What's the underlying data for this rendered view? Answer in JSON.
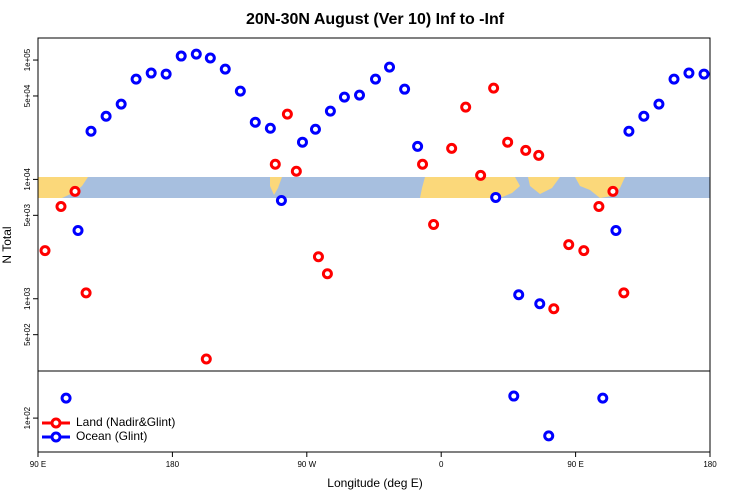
{
  "chart_data": {
    "type": "scatter",
    "title": "20N-30N August (Ver 10)   Inf to -Inf",
    "xlabel": "Longitude (deg E)",
    "ylabel": "N Total",
    "log_y": true,
    "legend": "bottom-left",
    "separator": 248,
    "xlim": [
      90,
      540
    ],
    "ylim": [
      52,
      153000
    ],
    "xticks": [
      {
        "value": 90,
        "label": "90 E"
      },
      180,
      {
        "value": 270,
        "label": "90 W"
      },
      {
        "value": 360,
        "label": "0"
      },
      {
        "value": 450,
        "label": "90 E"
      },
      {
        "value": 540,
        "label": "180"
      }
    ],
    "yticks": [
      {
        "value": 100,
        "label": "1e+02"
      },
      {
        "value": 500,
        "label": "5e+02"
      },
      {
        "value": 1000,
        "label": "1e+03"
      },
      {
        "value": 5000,
        "label": "5e+03"
      },
      {
        "value": 10000,
        "label": "1e+04"
      },
      {
        "value": 50000,
        "label": "5e+04"
      },
      {
        "value": 100000,
        "label": "1e+05"
      }
    ],
    "series": [
      {
        "name": "Land (Nadir&Glint)",
        "color": "#ff0000",
        "x": [
          94.7,
          105.4,
          114.8,
          122.2,
          202.7,
          248.9,
          257.0,
          263.0,
          277.8,
          283.8,
          347.5,
          354.9,
          367.0,
          376.4,
          386.4,
          395.1,
          404.5,
          416.6,
          425.3,
          435.4,
          445.4,
          455.5,
          465.6,
          475.0,
          482.3
        ],
        "values": [
          2530,
          5930,
          7930,
          1120,
          313,
          13400,
          35200,
          11700,
          2250,
          1620,
          13400,
          4190,
          18200,
          40300,
          10800,
          58200,
          20500,
          17500,
          15900,
          824,
          2840,
          2530,
          5930,
          7930,
          1120
        ]
      },
      {
        "name": "Ocean (Glint)",
        "color": "#0000ff",
        "x": [
          108.8,
          116.8,
          125.5,
          135.6,
          145.7,
          155.7,
          165.8,
          175.8,
          185.9,
          196.0,
          205.4,
          215.4,
          225.5,
          235.5,
          245.6,
          253.0,
          267.1,
          275.8,
          285.8,
          295.2,
          305.3,
          316.0,
          325.4,
          335.5,
          344.2,
          396.5,
          408.6,
          411.9,
          426.0,
          432.0,
          468.2,
          477.0,
          485.7,
          495.7,
          505.8,
          515.9,
          525.9,
          536.0
        ],
        "values": [
          147,
          3730,
          25300,
          33800,
          42700,
          69200,
          77800,
          76300,
          108000,
          112000,
          104000,
          84000,
          54900,
          30100,
          26800,
          6660,
          20500,
          26300,
          37300,
          48900,
          50800,
          69200,
          87300,
          57000,
          18900,
          7060,
          153,
          1080,
          908,
          71,
          147,
          3730,
          25300,
          33800,
          42700,
          69200,
          77800,
          76300
        ]
      }
    ]
  }
}
